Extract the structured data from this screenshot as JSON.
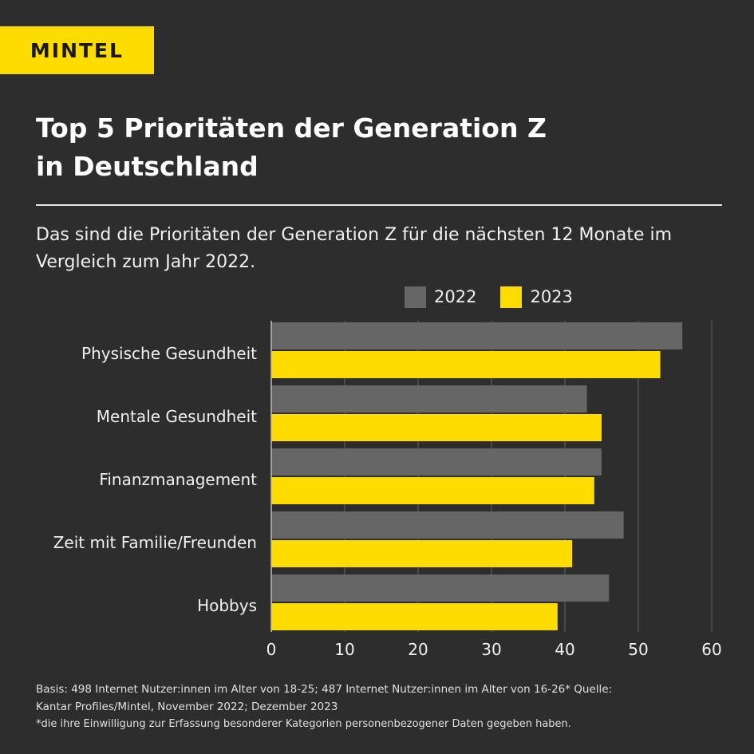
{
  "brand": {
    "logo_text": "MINTEL",
    "accent": "#ffdc00"
  },
  "title_lines": [
    "Top 5 Prioritäten der Generation Z",
    "in Deutschland"
  ],
  "subtitle_lines": [
    "Das sind die Prioritäten der Generation Z für die nächsten 12 Monate im",
    "Vergleich zum Jahr 2022."
  ],
  "chart_data": {
    "type": "bar",
    "orientation": "horizontal",
    "categories": [
      "Physische Gesundheit",
      "Mentale Gesundheit",
      "Finanzmanagement",
      "Zeit mit Familie/Freunden",
      "Hobbys"
    ],
    "series": [
      {
        "name": "2022",
        "color": "#666666",
        "values": [
          56,
          43,
          45,
          48,
          46
        ]
      },
      {
        "name": "2023",
        "color": "#ffdc00",
        "values": [
          53,
          45,
          44,
          41,
          39
        ]
      }
    ],
    "xlim": [
      0,
      60
    ],
    "xticks": [
      "0",
      "10",
      "20",
      "30",
      "40",
      "50",
      "60"
    ],
    "grid": true,
    "legend": "top-right"
  },
  "footnote": {
    "lines": [
      "Basis: 498 Internet Nutzer:innen im Alter von 18-25; 487 Internet Nutzer:innen im Alter von 16-26* Quelle:",
      "Kantar Profiles/Mintel, November 2022; Dezember 2023",
      "*die ihre Einwilligung zur Erfassung besonderer Kategorien personenbezogener Daten gegeben haben."
    ]
  }
}
